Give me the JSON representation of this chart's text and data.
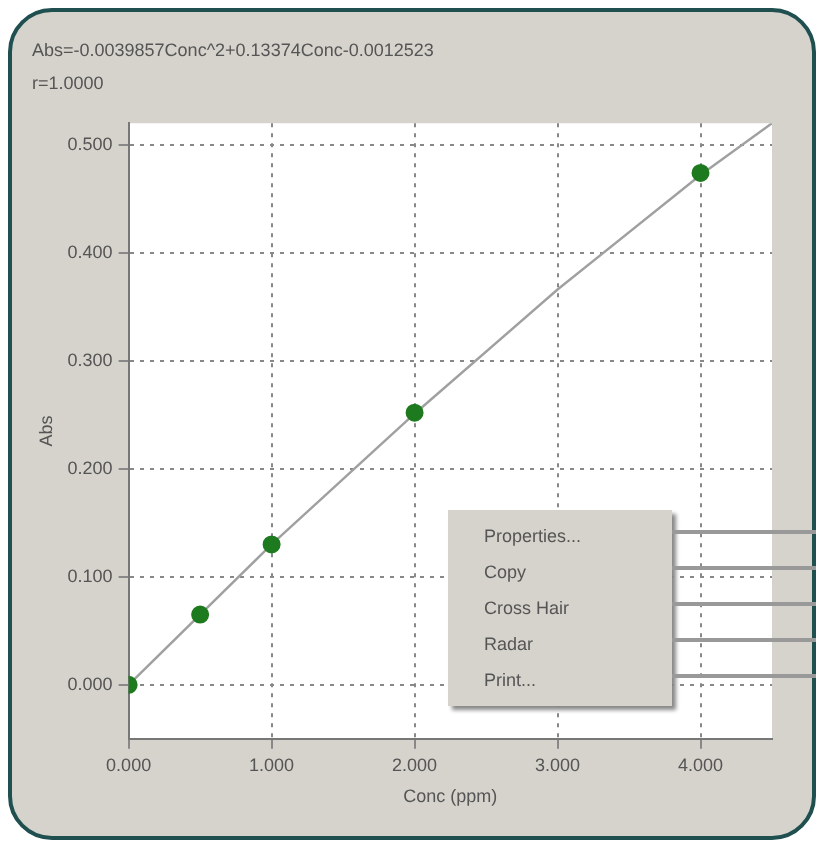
{
  "chart_data": {
    "type": "scatter",
    "title": "Abs=-0.0039857Conc^2+0.13374Conc-0.0012523",
    "subtitle": "r=1.0000",
    "xlabel": "Conc (ppm)",
    "ylabel": "Abs",
    "x": [
      0,
      0.5,
      1,
      2,
      4
    ],
    "series": [
      {
        "color": "#1e7a1e",
        "values": [
          0.0,
          0.065,
          0.13,
          0.252,
          0.474
        ]
      },
      {
        "type": "line",
        "color": "#a0a0a0",
        "x": [
          0,
          1,
          2,
          3,
          4,
          4.5
        ],
        "values": [
          0.0,
          0.13,
          0.251,
          0.366,
          0.472,
          0.52
        ],
        "marker": "none"
      }
    ],
    "xlim": [
      0,
      4.5
    ],
    "xticks": [
      {
        "value": 0,
        "label": "0.000"
      },
      {
        "value": 1,
        "label": "1.000"
      },
      {
        "value": 2,
        "label": "2.000"
      },
      {
        "value": 3,
        "label": "3.000"
      },
      {
        "value": 4,
        "label": "4.000"
      }
    ],
    "ylim": [
      -0.05,
      0.52
    ],
    "yticks": [
      {
        "value": 0,
        "label": "0.000"
      },
      {
        "value": 0.1,
        "label": "0.100"
      },
      {
        "value": 0.2,
        "label": "0.200"
      },
      {
        "value": 0.3,
        "label": "0.300"
      },
      {
        "value": 0.4,
        "label": "0.400"
      },
      {
        "value": 0.5,
        "label": "0.500"
      }
    ],
    "grid": true,
    "legend": false,
    "marker": "circle",
    "line_style": "solid",
    "annotations": [
      "Properties...",
      "Copy",
      "Cross Hair",
      "Radar",
      "Print..."
    ]
  }
}
